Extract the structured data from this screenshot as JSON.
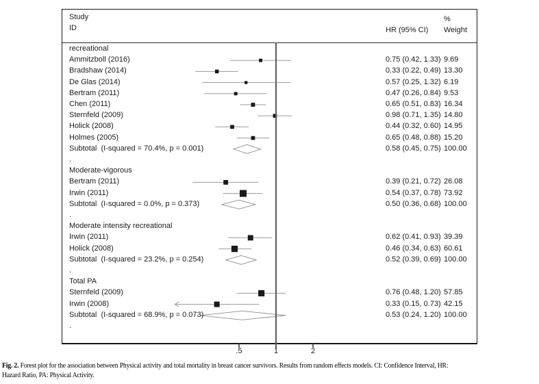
{
  "chart_data": {
    "type": "forest",
    "x_scale": "log",
    "x_ticks": [
      {
        "label": ".5",
        "value": 0.5
      },
      {
        "label": "1",
        "value": 1.0
      },
      {
        "label": "2",
        "value": 2.0
      }
    ],
    "ref_line_value": 1.0,
    "columns": {
      "study": [
        "Study",
        "ID"
      ],
      "hr": "HR (95% CI)",
      "weight": [
        "%",
        "Weight"
      ]
    },
    "groups": [
      {
        "label": "recreational",
        "studies": [
          {
            "id": "Ammitzboll (2016)",
            "hr": 0.75,
            "ci": [
              0.42,
              1.33
            ],
            "weight": 9.69,
            "hr_text": "0.75 (0.42, 1.33)",
            "weight_text": "9.69"
          },
          {
            "id": "Bradshaw (2014)",
            "hr": 0.33,
            "ci": [
              0.22,
              0.49
            ],
            "weight": 13.3,
            "hr_text": "0.33 (0.22, 0.49)",
            "weight_text": "13.30"
          },
          {
            "id": "De Glas (2014)",
            "hr": 0.57,
            "ci": [
              0.25,
              1.32
            ],
            "weight": 6.19,
            "hr_text": "0.57 (0.25, 1.32)",
            "weight_text": "6.19"
          },
          {
            "id": "Bertram (2011)",
            "hr": 0.47,
            "ci": [
              0.26,
              0.84
            ],
            "weight": 9.53,
            "hr_text": "0.47 (0.26, 0.84)",
            "weight_text": "9.53"
          },
          {
            "id": "Chen (2011)",
            "hr": 0.65,
            "ci": [
              0.51,
              0.83
            ],
            "weight": 16.34,
            "hr_text": "0.65 (0.51, 0.83)",
            "weight_text": "16.34"
          },
          {
            "id": "Sternfeld (2009)",
            "hr": 0.98,
            "ci": [
              0.71,
              1.35
            ],
            "weight": 14.8,
            "hr_text": "0.98 (0.71, 1.35)",
            "weight_text": "14.80"
          },
          {
            "id": "Holick (2008)",
            "hr": 0.44,
            "ci": [
              0.32,
              0.6
            ],
            "weight": 14.95,
            "hr_text": "0.44 (0.32, 0.60)",
            "weight_text": "14.95"
          },
          {
            "id": "Holmes (2005)",
            "hr": 0.65,
            "ci": [
              0.48,
              0.88
            ],
            "weight": 15.2,
            "hr_text": "0.65 (0.48, 0.88)",
            "weight_text": "15.20"
          }
        ],
        "subtotal": {
          "label": "Subtotal  (I-squared = 70.4%, p = 0.001)",
          "hr": 0.58,
          "ci": [
            0.45,
            0.75
          ],
          "hr_text": "0.58 (0.45, 0.75)",
          "weight_text": "100.00"
        }
      },
      {
        "label": "Moderate-vigorous",
        "studies": [
          {
            "id": "Bertram (2011)",
            "hr": 0.39,
            "ci": [
              0.21,
              0.72
            ],
            "weight": 26.08,
            "hr_text": "0.39 (0.21, 0.72)",
            "weight_text": "26.08"
          },
          {
            "id": "Irwin (2011)",
            "hr": 0.54,
            "ci": [
              0.37,
              0.78
            ],
            "weight": 73.92,
            "hr_text": "0.54 (0.37, 0.78)",
            "weight_text": "73.92"
          }
        ],
        "subtotal": {
          "label": "Subtotal  (I-squared = 0.0%, p = 0.373)",
          "hr": 0.5,
          "ci": [
            0.36,
            0.68
          ],
          "hr_text": "0.50 (0.36, 0.68)",
          "weight_text": "100.00"
        }
      },
      {
        "label": "Moderate intensity recreational",
        "studies": [
          {
            "id": "Irwin (2011)",
            "hr": 0.62,
            "ci": [
              0.41,
              0.93
            ],
            "weight": 39.39,
            "hr_text": "0.62 (0.41, 0.93)",
            "weight_text": "39.39"
          },
          {
            "id": "Holick (2008)",
            "hr": 0.46,
            "ci": [
              0.34,
              0.63
            ],
            "weight": 60.61,
            "hr_text": "0.46 (0.34, 0.63)",
            "weight_text": "60.61"
          }
        ],
        "subtotal": {
          "label": "Subtotal  (I-squared = 23.2%, p = 0.254)",
          "hr": 0.52,
          "ci": [
            0.39,
            0.69
          ],
          "hr_text": "0.52 (0.39, 0.69)",
          "weight_text": "100.00"
        }
      },
      {
        "label": "Total PA",
        "studies": [
          {
            "id": "Sternfeld (2009)",
            "hr": 0.76,
            "ci": [
              0.48,
              1.2
            ],
            "weight": 57.85,
            "hr_text": "0.76 (0.48, 1.20)",
            "weight_text": "57.85"
          },
          {
            "id": "Irwin (2008)",
            "hr": 0.33,
            "ci": [
              0.15,
              0.73
            ],
            "weight": 42.15,
            "hr_text": "0.33 (0.15, 0.73)",
            "weight_text": "42.15",
            "arrow_lo": true
          }
        ],
        "subtotal": {
          "label": "Subtotal  (I-squared = 68.9%, p = 0.073)",
          "hr": 0.53,
          "ci": [
            0.24,
            1.2
          ],
          "hr_text": "0.53 (0.24, 1.20)",
          "weight_text": "100.00"
        }
      }
    ],
    "gap_row_marker": "."
  },
  "caption": {
    "fig_label": "Fig. 2.",
    "line1": "Forest plot for the association between Physical activity and total mortality in breast cancer survivors. Results from random effects models. CI: Confidence Interval, HR:",
    "line2": "Hazard Ratio, PA: Physical Activity."
  },
  "colors": {
    "marker": "#1a1a1a",
    "ci_line": "#9a9a9a",
    "diamond_outline": "#8c8c8c",
    "ref_line": "#5a5a5a",
    "frame": "#161616",
    "text": "#1a1a1a"
  }
}
